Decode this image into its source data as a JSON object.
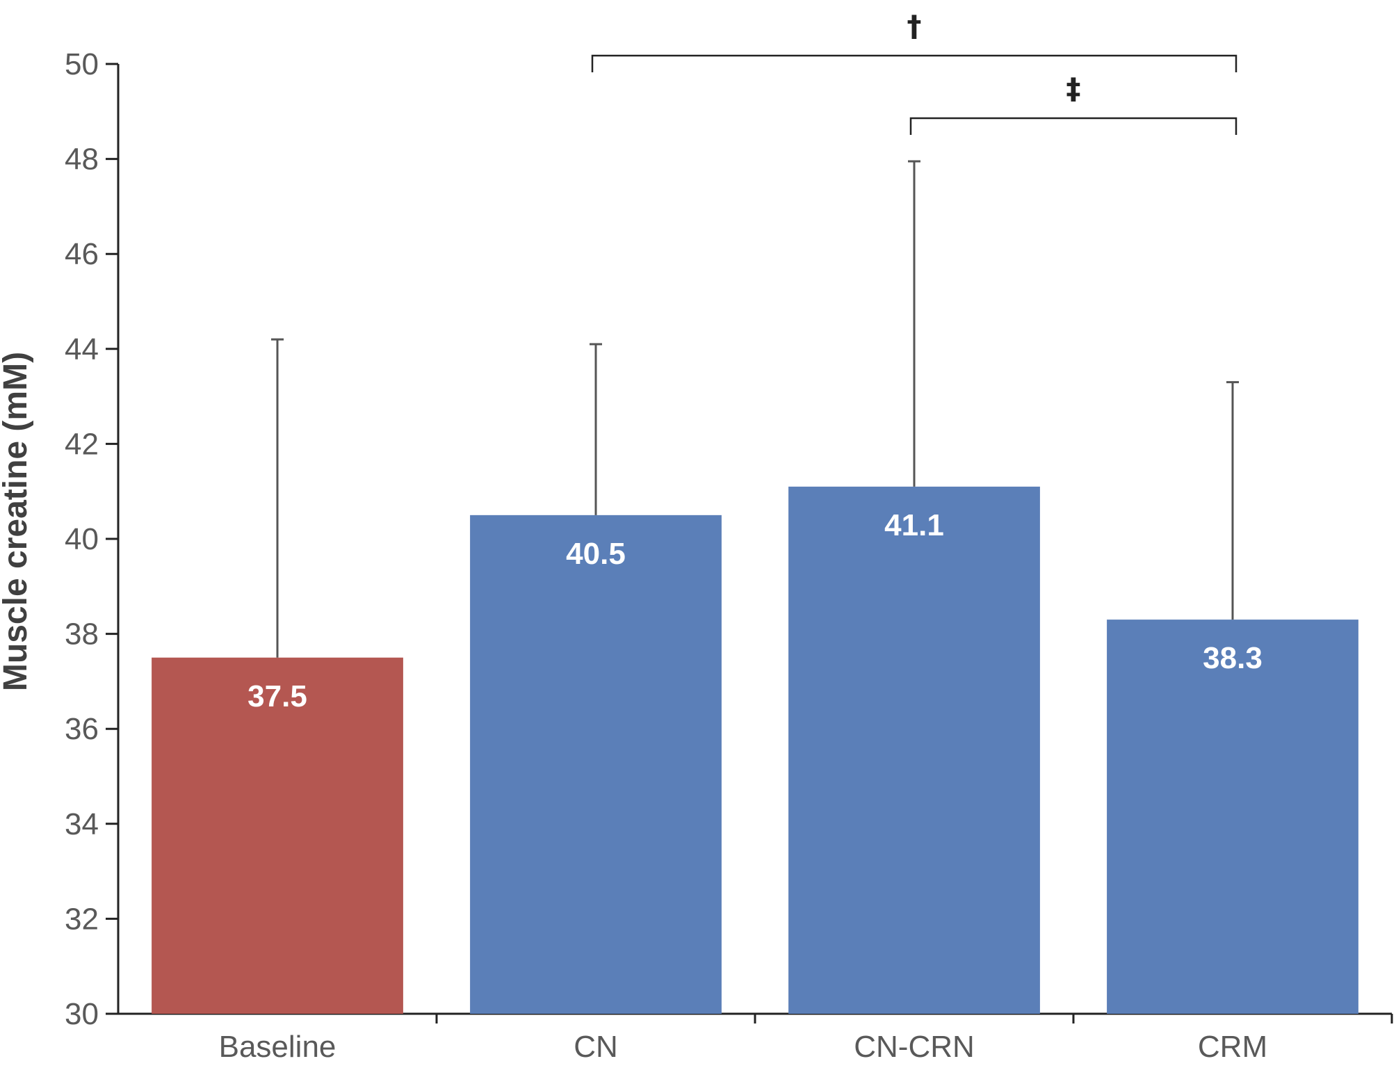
{
  "chart_data": {
    "type": "bar",
    "title": "",
    "xlabel": "",
    "ylabel": "Muscle creatine (mM)",
    "ylim": [
      30,
      50
    ],
    "yticks": [
      30,
      32,
      34,
      36,
      38,
      40,
      42,
      44,
      46,
      48,
      50
    ],
    "categories": [
      "Baseline",
      "CN",
      "CN-CRN",
      "CRM"
    ],
    "values": [
      37.5,
      40.5,
      41.1,
      38.3
    ],
    "data_labels": [
      "37.5",
      "40.5",
      "41.1",
      "38.3"
    ],
    "error_upper": [
      44.2,
      44.1,
      47.95,
      43.3
    ],
    "bar_colors": [
      "#b45751",
      "#5b7fb8",
      "#5b7fb8",
      "#5b7fb8"
    ],
    "grid": false,
    "significance": [
      {
        "from": "CN",
        "to": "CRM",
        "symbol": "†"
      },
      {
        "from": "CN-CRN",
        "to": "CRM",
        "symbol": "‡"
      }
    ]
  }
}
